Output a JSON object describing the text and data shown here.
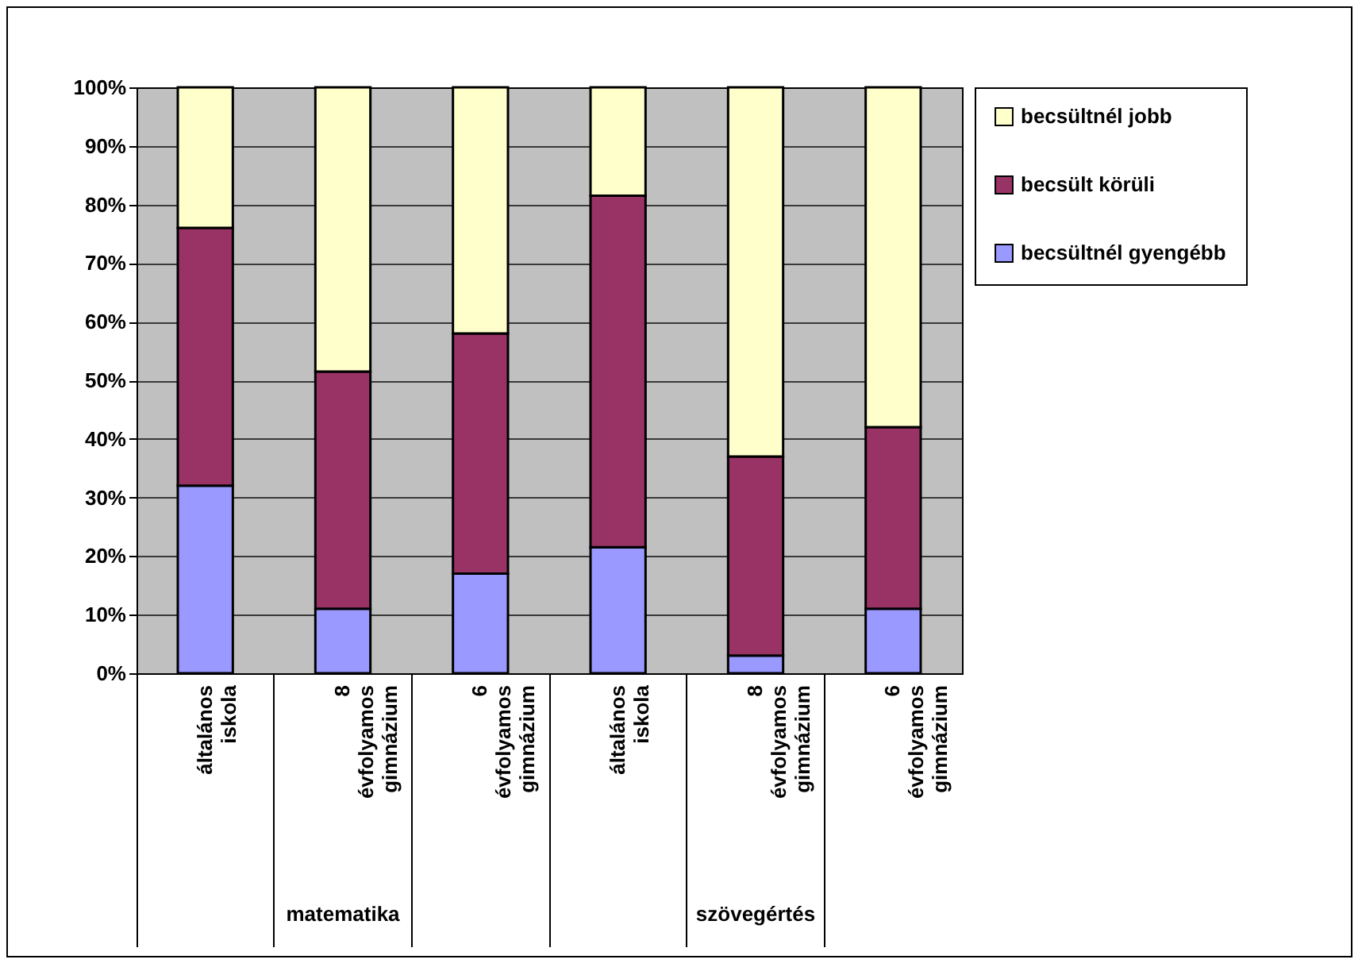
{
  "chart_data": {
    "type": "bar",
    "stacked": true,
    "categories": [
      "általános iskola",
      "8 évfolyamos gimnázium",
      "6 évfolyamos gimnázium",
      "általános iskola",
      "8 évfolyamos gimnázium",
      "6 évfolyamos gimnázium"
    ],
    "series": [
      {
        "name": "becsültnél gyengébb",
        "color": "#9999ff",
        "values": [
          32,
          11,
          17,
          21.5,
          3,
          11
        ]
      },
      {
        "name": "becsült körüli",
        "color": "#993366",
        "values": [
          44,
          40.5,
          41,
          60,
          34,
          31
        ]
      },
      {
        "name": "becsültnél jobb",
        "color": "#ffffcc",
        "values": [
          24,
          48.5,
          42,
          18.5,
          63,
          58
        ]
      }
    ],
    "ylim": [
      0,
      100
    ],
    "yticks": [
      {
        "value": 0,
        "label": "0%"
      },
      {
        "value": 10,
        "label": "10%"
      },
      {
        "value": 20,
        "label": "20%"
      },
      {
        "value": 30,
        "label": "30%"
      },
      {
        "value": 40,
        "label": "40%"
      },
      {
        "value": 50,
        "label": "50%"
      },
      {
        "value": 60,
        "label": "60%"
      },
      {
        "value": 70,
        "label": "70%"
      },
      {
        "value": 80,
        "label": "80%"
      },
      {
        "value": 90,
        "label": "90%"
      },
      {
        "value": 100,
        "label": "100%"
      }
    ],
    "grid": "y",
    "legend": "right",
    "annotations": [
      "matematika",
      "szövegértés"
    ]
  }
}
